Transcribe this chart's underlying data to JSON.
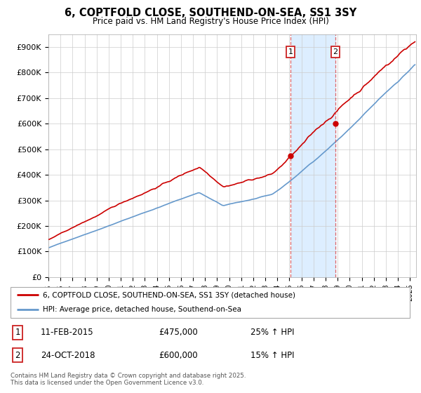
{
  "title": "6, COPTFOLD CLOSE, SOUTHEND-ON-SEA, SS1 3SY",
  "subtitle": "Price paid vs. HM Land Registry's House Price Index (HPI)",
  "ylabel_ticks": [
    "£0",
    "£100K",
    "£200K",
    "£300K",
    "£400K",
    "£500K",
    "£600K",
    "£700K",
    "£800K",
    "£900K"
  ],
  "ytick_values": [
    0,
    100000,
    200000,
    300000,
    400000,
    500000,
    600000,
    700000,
    800000,
    900000
  ],
  "ylim": [
    0,
    950000
  ],
  "xlim_start": 1995.0,
  "xlim_end": 2025.5,
  "red_line_color": "#cc0000",
  "blue_line_color": "#6699cc",
  "shade_color": "#ddeeff",
  "purchase1_x": 2015.1,
  "purchase1_y": 475000,
  "purchase2_x": 2018.82,
  "purchase2_y": 600000,
  "vline1_x": 2015.1,
  "vline2_x": 2018.82,
  "legend_red": "6, COPTFOLD CLOSE, SOUTHEND-ON-SEA, SS1 3SY (detached house)",
  "legend_blue": "HPI: Average price, detached house, Southend-on-Sea",
  "table_row1": [
    "1",
    "11-FEB-2015",
    "£475,000",
    "25% ↑ HPI"
  ],
  "table_row2": [
    "2",
    "24-OCT-2018",
    "£600,000",
    "15% ↑ HPI"
  ],
  "footer": "Contains HM Land Registry data © Crown copyright and database right 2025.\nThis data is licensed under the Open Government Licence v3.0.",
  "grid_color": "#cccccc"
}
